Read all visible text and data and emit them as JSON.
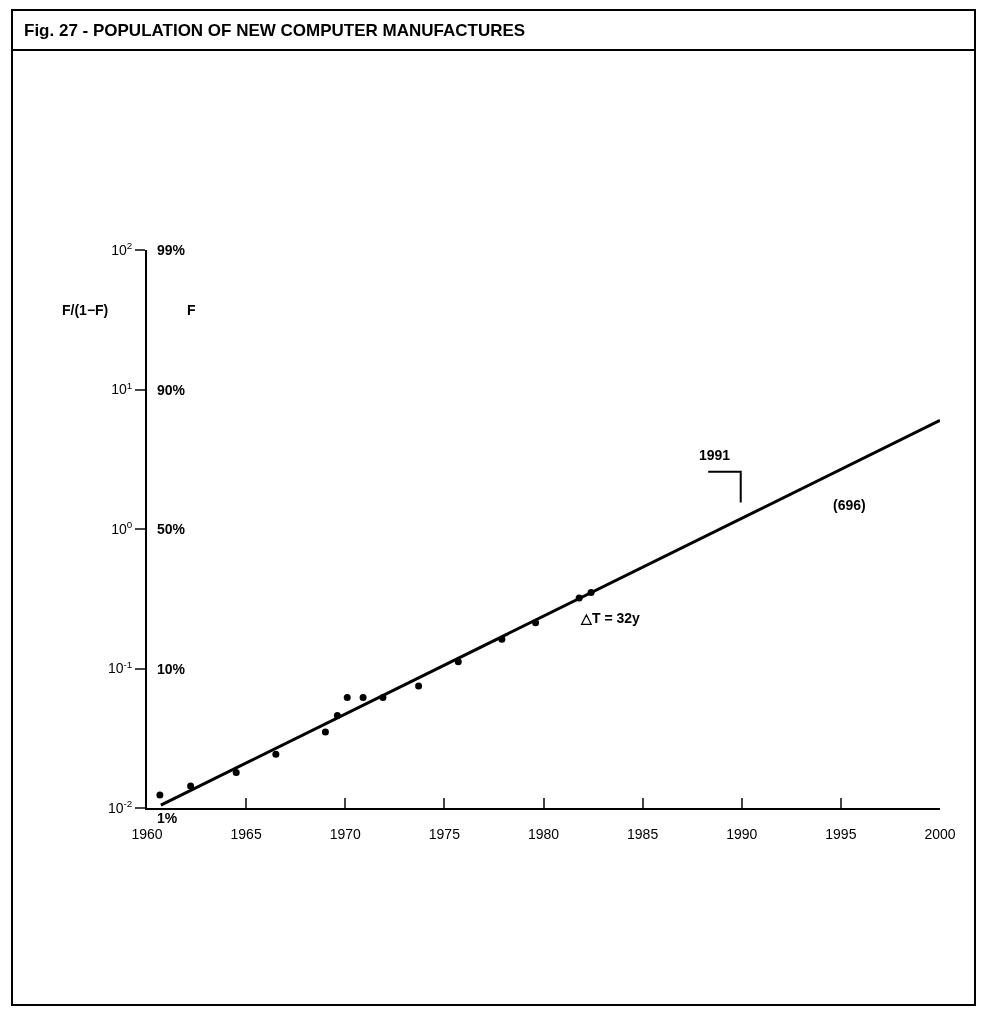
{
  "chart_data": {
    "type": "scatter",
    "title": "Fig. 27 - POPULATION OF NEW COMPUTER MANUFACTURES",
    "ylabel": "F/(1−F)",
    "xlim": [
      1960,
      2000
    ],
    "xticks": [
      1960,
      1965,
      1970,
      1975,
      1980,
      1985,
      1990,
      1995,
      2000
    ],
    "ylim": [
      0.01,
      100
    ],
    "log": "y",
    "yticks": [
      {
        "value": 0.01,
        "label": "10$^{-2}$"
      },
      {
        "value": 0.1,
        "label": "10$^{-1}$"
      },
      {
        "value": 1,
        "label": "10$^{0}$"
      },
      {
        "value": 10,
        "label": "10$^{1}$"
      },
      {
        "value": 100,
        "label": "10$^{2}$"
      }
    ],
    "grid": false,
    "marker": "circle",
    "series": [
      {
        "type": "scatter",
        "color": "#000000",
        "x": [
          1960.65,
          1962.2,
          1964.5,
          1966.5,
          1969.0,
          1969.6,
          1970.1,
          1970.9,
          1971.9,
          1973.7,
          1975.7,
          1977.9,
          1979.6,
          1981.8,
          1982.4
        ],
        "values": [
          0.0124,
          0.0144,
          0.018,
          0.0243,
          0.035,
          0.046,
          0.062,
          0.062,
          0.062,
          0.075,
          0.112,
          0.162,
          0.213,
          0.32,
          0.35
        ]
      },
      {
        "type": "line",
        "color": "#000000",
        "x": [
          1960.7,
          2000
        ],
        "values": [
          0.0105,
          6
        ],
        "marker": "none"
      }
    ],
    "annotations": [
      "1991",
      "(696)",
      "△T = 32y",
      "F",
      "1%",
      "10%",
      "50%",
      "90%",
      "99%"
    ]
  }
}
